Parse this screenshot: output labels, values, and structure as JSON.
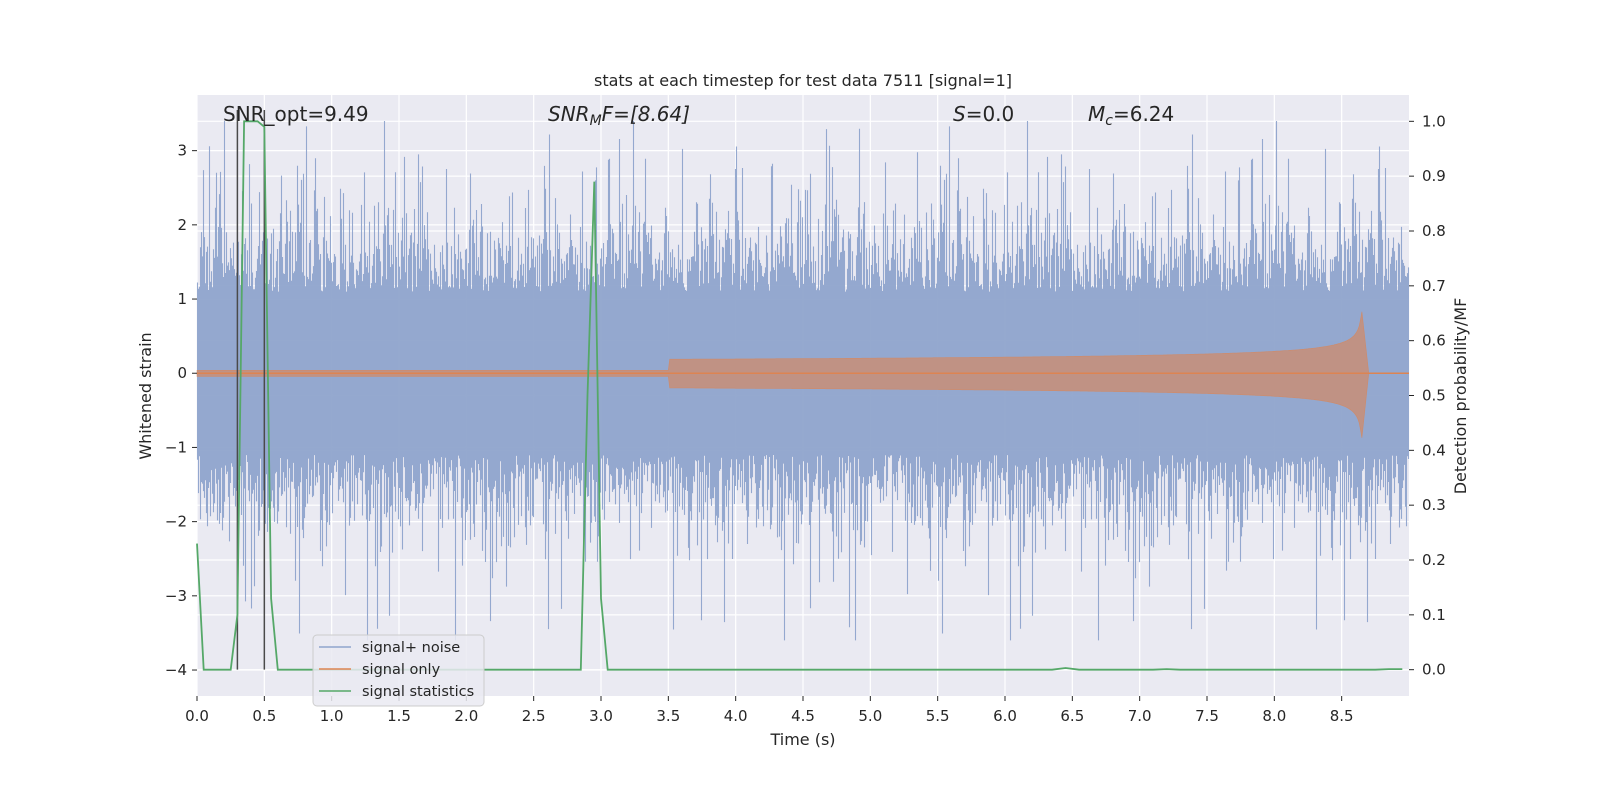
{
  "chart_data": {
    "type": "line",
    "title": "stats at each timestep for test data 7511 [signal=1]",
    "xlabel": "Time (s)",
    "ylabel": "Whitened strain",
    "y2label": "Detection probability/MF",
    "xlim": [
      0.0,
      9.0
    ],
    "ylim": [
      -4.35,
      3.75
    ],
    "y2lim": [
      -0.048,
      1.048
    ],
    "xticks": [
      "0.0",
      "0.5",
      "1.0",
      "1.5",
      "2.0",
      "2.5",
      "3.0",
      "3.5",
      "4.0",
      "4.5",
      "5.0",
      "5.5",
      "6.0",
      "6.5",
      "7.0",
      "7.5",
      "8.0",
      "8.5"
    ],
    "xtick_values": [
      0.0,
      0.5,
      1.0,
      1.5,
      2.0,
      2.5,
      3.0,
      3.5,
      4.0,
      4.5,
      5.0,
      5.5,
      6.0,
      6.5,
      7.0,
      7.5,
      8.0,
      8.5
    ],
    "yticks": [
      "3",
      "2",
      "1",
      "0",
      "−1",
      "−2",
      "−3",
      "−4"
    ],
    "ytick_values": [
      3,
      2,
      1,
      0,
      -1,
      -2,
      -3,
      -4
    ],
    "y2ticks": [
      "1.0",
      "0.9",
      "0.8",
      "0.7",
      "0.6",
      "0.5",
      "0.4",
      "0.3",
      "0.2",
      "0.1",
      "0.0"
    ],
    "y2tick_values": [
      1.0,
      0.9,
      0.8,
      0.7,
      0.6,
      0.5,
      0.4,
      0.3,
      0.2,
      0.1,
      0.0
    ],
    "legend_position": "bottom-left",
    "series": [
      {
        "name": "signal+ noise",
        "color": "#8fa4cc",
        "axis": "left",
        "kind": "noise",
        "sample_rate": 2048,
        "typical_amplitude": 1.1,
        "peak_amplitude": 3.4
      },
      {
        "name": "signal only",
        "color": "#dd8452",
        "axis": "left",
        "kind": "chirp",
        "merger_time": 8.65,
        "peak_amplitude": 1.0,
        "f_start": 30,
        "f_end": 250
      },
      {
        "name": "signal statistics",
        "color": "#55a868",
        "axis": "right",
        "x": [
          0.0,
          0.05,
          0.1,
          0.15,
          0.2,
          0.25,
          0.3,
          0.35,
          0.4,
          0.45,
          0.5,
          0.55,
          0.6,
          0.65,
          0.7,
          2.8,
          2.85,
          2.9,
          2.95,
          3.0,
          3.05,
          3.1,
          6.35,
          6.45,
          6.55,
          7.1,
          7.2,
          7.3,
          8.75,
          8.85,
          8.95
        ],
        "y": [
          0.23,
          0.0,
          0.0,
          0.0,
          0.0,
          0.0,
          0.1,
          1.0,
          1.0,
          1.0,
          0.99,
          0.13,
          0.0,
          0.0,
          0.0,
          0.0,
          0.0,
          0.5,
          0.89,
          0.13,
          0.0,
          0.0,
          0.0,
          0.003,
          0.0,
          0.0,
          0.001,
          0.0,
          0.0,
          0.001,
          0.001
        ]
      }
    ],
    "vlines": [
      0.3,
      0.5
    ],
    "vline_color": "#4a4a4a",
    "annotations": [
      {
        "id": "snr_opt",
        "text": "SNR_opt=9.49"
      },
      {
        "id": "snr_mf",
        "pre": "SNR",
        "sub": "M",
        "post": "F=[8.64]"
      },
      {
        "id": "s",
        "pre": "S",
        "post": "=0.0"
      },
      {
        "id": "mc",
        "pre": "M",
        "sub": "c",
        "post": "=6.24"
      }
    ]
  }
}
